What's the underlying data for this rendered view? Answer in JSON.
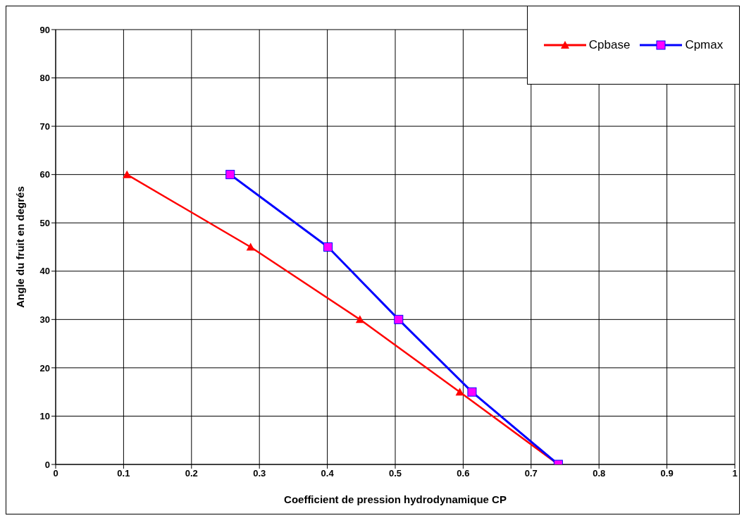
{
  "chart_data": {
    "type": "line",
    "xlabel": "Coefficient de pression hydrodynamique  CP",
    "ylabel": "Angle du fruit en degrés",
    "series": [
      {
        "name": "Cpbase",
        "color": "#ff0000",
        "marker": "triangle",
        "x": [
          0.105,
          0.287,
          0.448,
          0.595,
          0.74
        ],
        "values": [
          60,
          45,
          30,
          15,
          0
        ]
      },
      {
        "name": "Cpmax",
        "color": "#0000ff",
        "marker": "square",
        "x": [
          0.257,
          0.401,
          0.505,
          0.613,
          0.74
        ],
        "values": [
          60,
          45,
          30,
          15,
          0
        ]
      }
    ],
    "xlim": [
      0,
      1
    ],
    "xticks": [
      0,
      0.1,
      0.2,
      0.3,
      0.4,
      0.5,
      0.6,
      0.7,
      0.8,
      0.9,
      1
    ],
    "ylim": [
      0,
      90
    ],
    "yticks": [
      0,
      10,
      20,
      30,
      40,
      50,
      60,
      70,
      80,
      90
    ],
    "grid": true,
    "legend": "top right",
    "line_style": "solid"
  }
}
